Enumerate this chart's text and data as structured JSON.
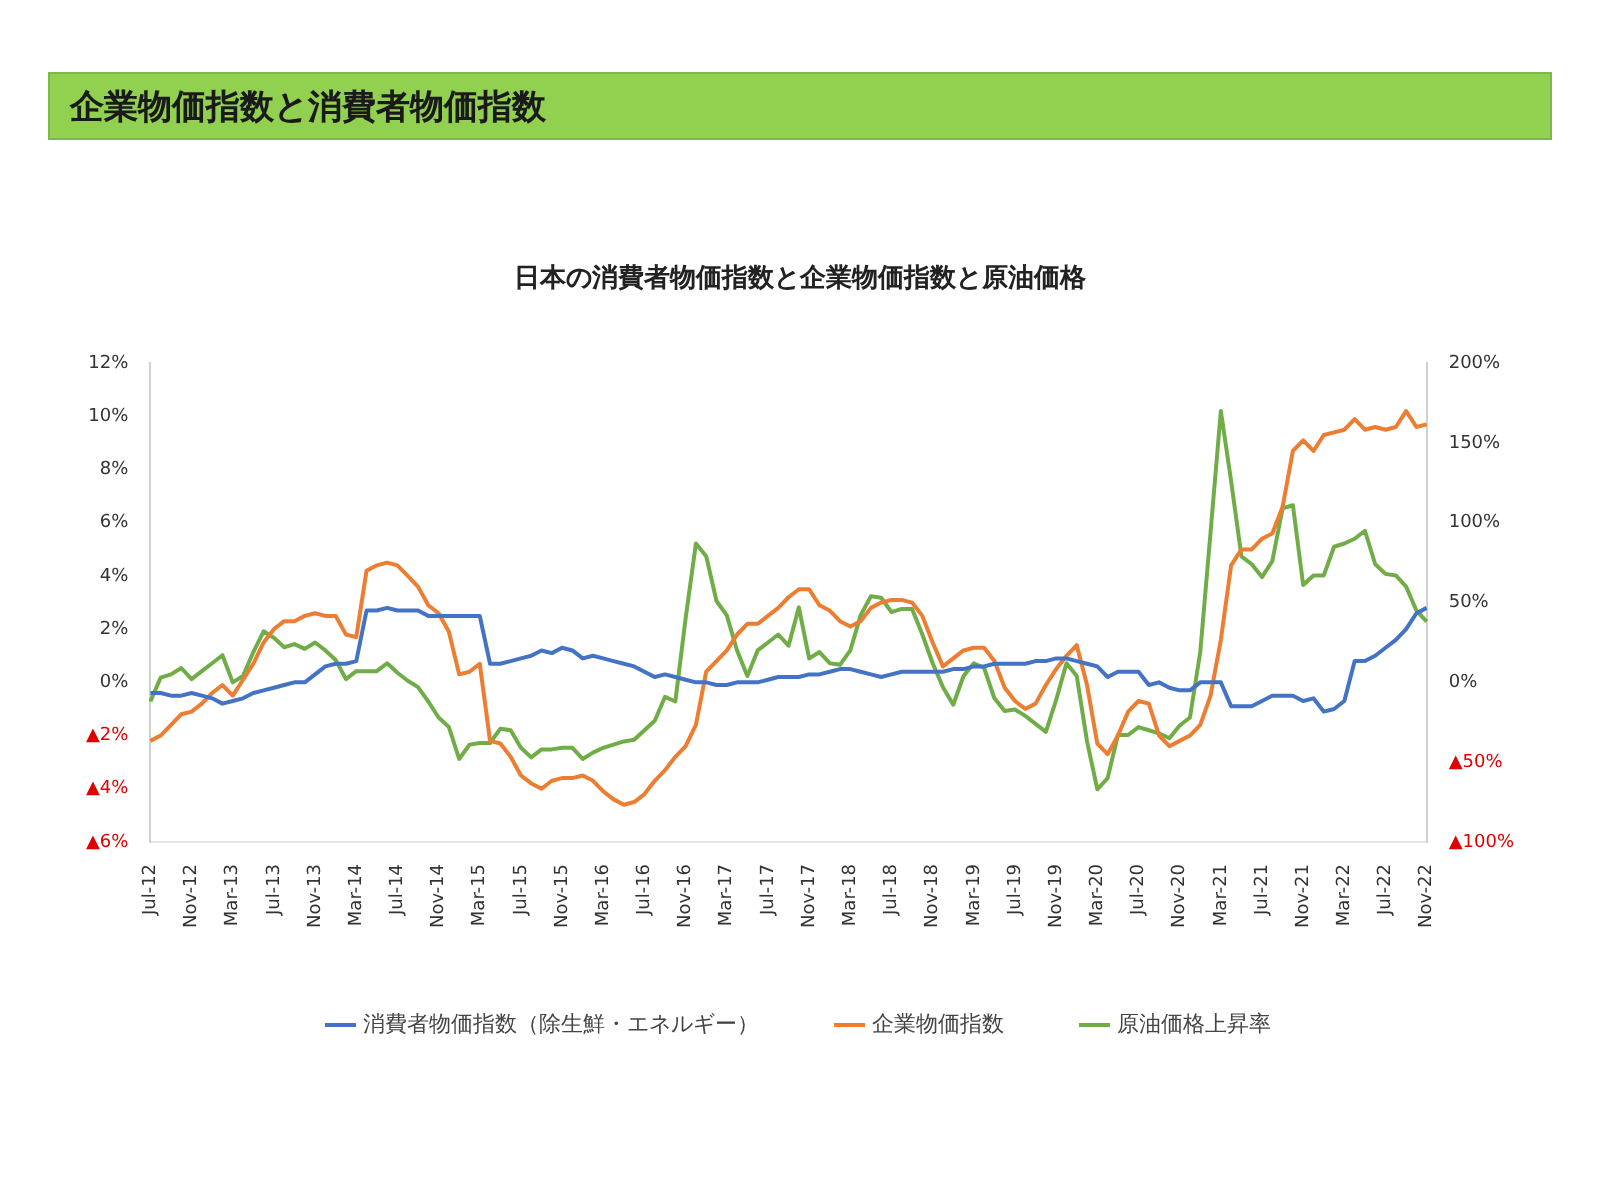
{
  "chart_data": {
    "type": "line",
    "title": "企業物価指数と消費者物価指数",
    "subtitle": "日本の消費者物価指数と企業物価指数と原油価格",
    "categories": [
      "Jul-12",
      null,
      null,
      null,
      "Nov-12",
      null,
      null,
      null,
      "Mar-13",
      null,
      null,
      null,
      "Jul-13",
      null,
      null,
      null,
      "Nov-13",
      null,
      null,
      null,
      "Mar-14",
      null,
      null,
      null,
      "Jul-14",
      null,
      null,
      null,
      "Nov-14",
      null,
      null,
      null,
      "Mar-15",
      null,
      null,
      null,
      "Jul-15",
      null,
      null,
      null,
      "Nov-15",
      null,
      null,
      null,
      "Mar-16",
      null,
      null,
      null,
      "Jul-16",
      null,
      null,
      null,
      "Nov-16",
      null,
      null,
      null,
      "Mar-17",
      null,
      null,
      null,
      "Jul-17",
      null,
      null,
      null,
      "Nov-17",
      null,
      null,
      null,
      "Mar-18",
      null,
      null,
      null,
      "Jul-18",
      null,
      null,
      null,
      "Nov-18",
      null,
      null,
      null,
      "Mar-19",
      null,
      null,
      null,
      "Jul-19",
      null,
      null,
      null,
      "Nov-19",
      null,
      null,
      null,
      "Mar-20",
      null,
      null,
      null,
      "Jul-20",
      null,
      null,
      null,
      "Nov-20",
      null,
      null,
      null,
      "Mar-21",
      null,
      null,
      null,
      "Jul-21",
      null,
      null,
      null,
      "Nov-21",
      null,
      null,
      null,
      "Mar-22",
      null,
      null,
      null,
      "Jul-22",
      null,
      null,
      null,
      "Nov-22"
    ],
    "series": [
      {
        "name": "消費者物価指数（除生鮮・エネルギー）",
        "color": "#4472c4",
        "values": [
          -0.4,
          -0.4,
          -0.5,
          -0.5,
          -0.4,
          -0.5,
          -0.6,
          -0.8,
          -0.7,
          -0.6,
          -0.4,
          -0.3,
          -0.2,
          -0.1,
          0.0,
          0.0,
          0.3,
          0.6,
          0.7,
          0.7,
          0.8,
          2.7,
          2.7,
          2.8,
          2.7,
          2.7,
          2.7,
          2.5,
          2.5,
          2.5,
          2.5,
          2.5,
          2.5,
          0.7,
          0.7,
          0.8,
          0.9,
          1.0,
          1.2,
          1.1,
          1.3,
          1.2,
          0.9,
          1.0,
          0.9,
          0.8,
          0.7,
          0.6,
          0.4,
          0.2,
          0.3,
          0.2,
          0.1,
          0.0,
          0.0,
          -0.1,
          -0.1,
          0.0,
          0.0,
          0.0,
          0.1,
          0.2,
          0.2,
          0.2,
          0.3,
          0.3,
          0.4,
          0.5,
          0.5,
          0.4,
          0.3,
          0.2,
          0.3,
          0.4,
          0.4,
          0.4,
          0.4,
          0.4,
          0.5,
          0.5,
          0.6,
          0.6,
          0.7,
          0.7,
          0.7,
          0.7,
          0.8,
          0.8,
          0.9,
          0.9,
          0.8,
          0.7,
          0.6,
          0.2,
          0.4,
          0.4,
          0.4,
          -0.1,
          0.0,
          -0.2,
          -0.3,
          -0.3,
          0.0,
          0.0,
          0.0,
          -0.9,
          -0.9,
          -0.9,
          -0.7,
          -0.5,
          -0.5,
          -0.5,
          -0.7,
          -0.6,
          -1.1,
          -1.0,
          -0.7,
          0.8,
          0.8,
          1.0,
          1.3,
          1.6,
          2.0,
          2.6,
          2.8
        ]
      },
      {
        "name": "企業物価指数",
        "color": "#ed7d31",
        "values": [
          -2.2,
          -2.0,
          -1.6,
          -1.2,
          -1.1,
          -0.8,
          -0.4,
          -0.1,
          -0.5,
          0.1,
          0.7,
          1.5,
          2.0,
          2.3,
          2.3,
          2.5,
          2.6,
          2.5,
          2.5,
          1.8,
          1.7,
          4.2,
          4.4,
          4.5,
          4.4,
          4.0,
          3.6,
          2.9,
          2.6,
          1.9,
          0.3,
          0.4,
          0.7,
          -2.2,
          -2.3,
          -2.8,
          -3.5,
          -3.8,
          -4.0,
          -3.7,
          -3.6,
          -3.6,
          -3.5,
          -3.7,
          -4.1,
          -4.4,
          -4.6,
          -4.5,
          -4.2,
          -3.7,
          -3.3,
          -2.8,
          -2.4,
          -1.6,
          0.4,
          0.8,
          1.2,
          1.8,
          2.2,
          2.2,
          2.5,
          2.8,
          3.2,
          3.5,
          3.5,
          2.9,
          2.7,
          2.3,
          2.1,
          2.3,
          2.8,
          3.0,
          3.1,
          3.1,
          3.0,
          2.5,
          1.5,
          0.6,
          0.9,
          1.2,
          1.3,
          1.3,
          0.8,
          -0.2,
          -0.7,
          -1.0,
          -0.8,
          -0.1,
          0.5,
          1.0,
          1.4,
          -0.1,
          -2.3,
          -2.7,
          -2.0,
          -1.1,
          -0.7,
          -0.8,
          -2.0,
          -2.4,
          -2.2,
          -2.0,
          -1.6,
          -0.5,
          1.6,
          4.4,
          5.0,
          5.0,
          5.4,
          5.6,
          6.6,
          8.7,
          9.1,
          8.7,
          9.3,
          9.4,
          9.5,
          9.9,
          9.5,
          9.6,
          9.5,
          9.6,
          10.2,
          9.6,
          9.7
        ]
      },
      {
        "name": "原油価格上昇率",
        "color": "#70ad47",
        "axis": "y2",
        "values": [
          -12,
          3,
          5,
          9,
          2,
          7,
          12,
          17,
          0,
          4,
          19,
          32,
          28,
          22,
          24,
          21,
          25,
          20,
          14,
          2,
          7,
          7,
          7,
          12,
          6,
          1,
          -3,
          -12,
          -22,
          -28,
          -48,
          -39,
          -38,
          -38,
          -29,
          -30,
          -41,
          -47,
          -42,
          -42,
          -41,
          -41,
          -48,
          -44,
          -41,
          -39,
          -37,
          -36,
          -30,
          -24,
          -9,
          -12,
          40,
          87,
          79,
          51,
          42,
          20,
          4,
          20,
          25,
          30,
          23,
          47,
          15,
          19,
          12,
          11,
          20,
          42,
          54,
          53,
          44,
          46,
          46,
          30,
          12,
          -3,
          -14,
          4,
          12,
          9,
          -10,
          -18,
          -17,
          -21,
          -26,
          -31,
          -11,
          12,
          4,
          -37,
          -67,
          -60,
          -33,
          -33,
          -28,
          -30,
          -32,
          -35,
          -27,
          -22,
          19,
          94,
          170,
          126,
          79,
          74,
          66,
          76,
          109,
          111,
          61,
          67,
          67,
          85,
          87,
          90,
          95,
          74,
          68,
          67,
          60,
          45,
          38
        ]
      }
    ],
    "ylim": [
      -6,
      12
    ],
    "yticks": [
      {
        "value": -6,
        "label": "▲6%"
      },
      {
        "value": -4,
        "label": "▲4%"
      },
      {
        "value": -2,
        "label": "▲2%"
      },
      {
        "value": 0,
        "label": "0%"
      },
      {
        "value": 2,
        "label": "2%"
      },
      {
        "value": 4,
        "label": "4%"
      },
      {
        "value": 6,
        "label": "6%"
      },
      {
        "value": 8,
        "label": "8%"
      },
      {
        "value": 10,
        "label": "10%"
      },
      {
        "value": 12,
        "label": "12%"
      }
    ],
    "y2lim": [
      -100,
      200
    ],
    "y2ticks": [
      {
        "value": -100,
        "label": "▲100%"
      },
      {
        "value": -50,
        "label": "▲50%"
      },
      {
        "value": 0,
        "label": "0%"
      },
      {
        "value": 50,
        "label": "50%"
      },
      {
        "value": 100,
        "label": "100%"
      },
      {
        "value": 150,
        "label": "150%"
      },
      {
        "value": 200,
        "label": "200%"
      }
    ],
    "legend": "bottom",
    "marker": "none",
    "line_style": "solid"
  }
}
